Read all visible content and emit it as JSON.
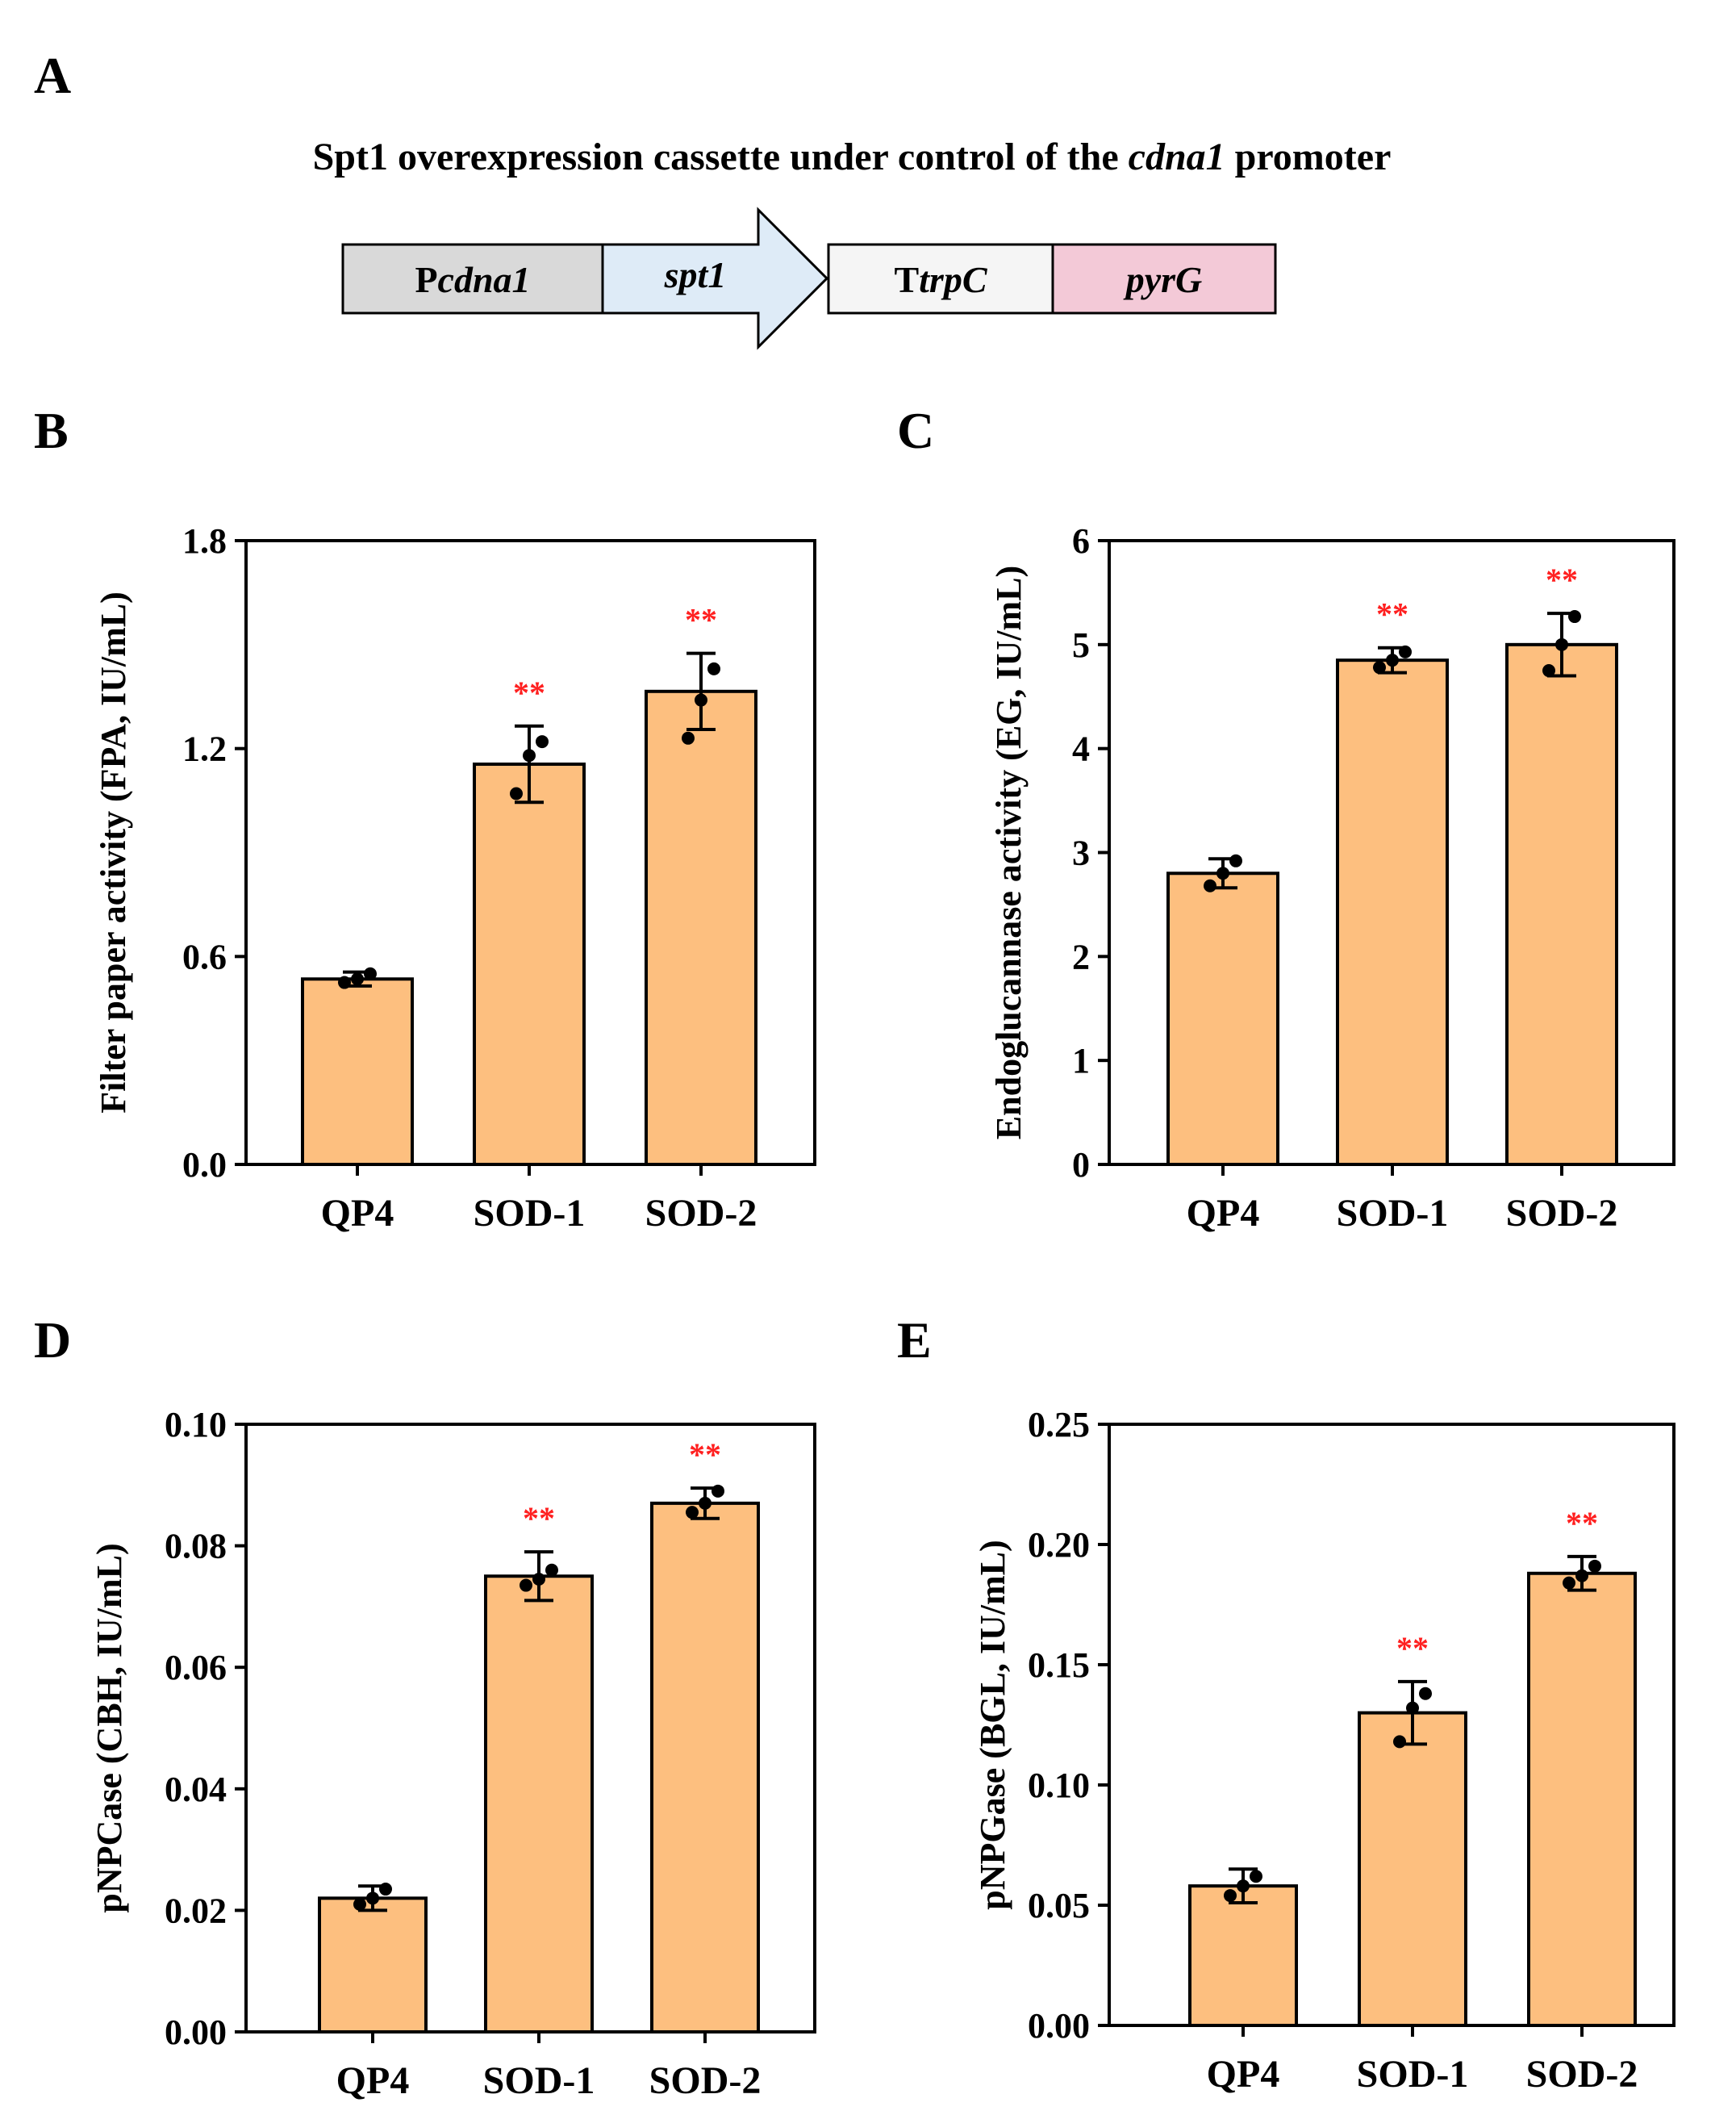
{
  "panel_labels": [
    "A",
    "B",
    "C",
    "D",
    "E"
  ],
  "schematic": {
    "title_prefix": "Spt1 overexpression cassette under control of the ",
    "title_italic": "cdna1",
    "title_suffix": " promoter",
    "segments": [
      {
        "prefix": "P",
        "italic": "cdna1",
        "color": "#d9d9d9"
      },
      {
        "prefix": "",
        "italic": "spt1",
        "color": "#deebf7"
      },
      {
        "prefix": "T",
        "italic": "trpC",
        "color": "#f5f5f5"
      },
      {
        "prefix": "",
        "italic": "pyrG",
        "color": "#f3c9d7"
      }
    ]
  },
  "colors": {
    "bar": "#fdbf7f",
    "significance": "#ff2020",
    "axis": "#000000"
  },
  "chart_data": [
    {
      "panel": "B",
      "type": "bar",
      "categories": [
        "QP4",
        "SOD-1",
        "SOD-2"
      ],
      "values": [
        0.535,
        1.155,
        1.365
      ],
      "errors": [
        0.02,
        0.11,
        0.11
      ],
      "points": [
        [
          0.525,
          0.535,
          0.55
        ],
        [
          1.07,
          1.18,
          1.22
        ],
        [
          1.23,
          1.34,
          1.43
        ]
      ],
      "significance": [
        "",
        "**",
        "**"
      ],
      "ylabel": "Filter paper activity (FPA, IU/mL)",
      "ylim": [
        0,
        1.8
      ],
      "yticks": [
        "0.0",
        "0.6",
        "1.2",
        "1.8"
      ],
      "ytick_values": [
        0,
        0.6,
        1.2,
        1.8
      ]
    },
    {
      "panel": "C",
      "type": "bar",
      "categories": [
        "QP4",
        "SOD-1",
        "SOD-2"
      ],
      "values": [
        2.8,
        4.85,
        5.0
      ],
      "errors": [
        0.14,
        0.12,
        0.3
      ],
      "points": [
        [
          2.68,
          2.8,
          2.92
        ],
        [
          4.78,
          4.85,
          4.93
        ],
        [
          4.75,
          5.0,
          5.27
        ]
      ],
      "significance": [
        "",
        "**",
        "**"
      ],
      "ylabel": "Endoglucannase activity (EG, IU/mL)",
      "ylim": [
        0,
        6
      ],
      "yticks": [
        "0",
        "1",
        "2",
        "3",
        "4",
        "5",
        "6"
      ],
      "ytick_values": [
        0,
        1,
        2,
        3,
        4,
        5,
        6
      ]
    },
    {
      "panel": "D",
      "type": "bar",
      "categories": [
        "QP4",
        "SOD-1",
        "SOD-2"
      ],
      "values": [
        0.022,
        0.075,
        0.087
      ],
      "errors": [
        0.002,
        0.004,
        0.0025
      ],
      "points": [
        [
          0.021,
          0.022,
          0.0235
        ],
        [
          0.0735,
          0.0745,
          0.076
        ],
        [
          0.0855,
          0.087,
          0.089
        ]
      ],
      "significance": [
        "",
        "**",
        "**"
      ],
      "ylabel": "pNPCase (CBH, IU/mL)",
      "ylim": [
        0,
        0.1
      ],
      "yticks": [
        "0.00",
        "0.02",
        "0.04",
        "0.06",
        "0.08",
        "0.10"
      ],
      "ytick_values": [
        0,
        0.02,
        0.04,
        0.06,
        0.08,
        0.1
      ]
    },
    {
      "panel": "E",
      "type": "bar",
      "categories": [
        "QP4",
        "SOD-1",
        "SOD-2"
      ],
      "values": [
        0.058,
        0.13,
        0.188
      ],
      "errors": [
        0.007,
        0.013,
        0.007
      ],
      "points": [
        [
          0.054,
          0.058,
          0.062
        ],
        [
          0.118,
          0.132,
          0.138
        ],
        [
          0.184,
          0.187,
          0.191
        ]
      ],
      "significance": [
        "",
        "**",
        "**"
      ],
      "ylabel": "pNPGase (BGL, IU/mL)",
      "ylim": [
        0,
        0.25
      ],
      "yticks": [
        "0.00",
        "0.05",
        "0.10",
        "0.15",
        "0.20",
        "0.25"
      ],
      "ytick_values": [
        0,
        0.05,
        0.1,
        0.15,
        0.2,
        0.25
      ]
    }
  ]
}
